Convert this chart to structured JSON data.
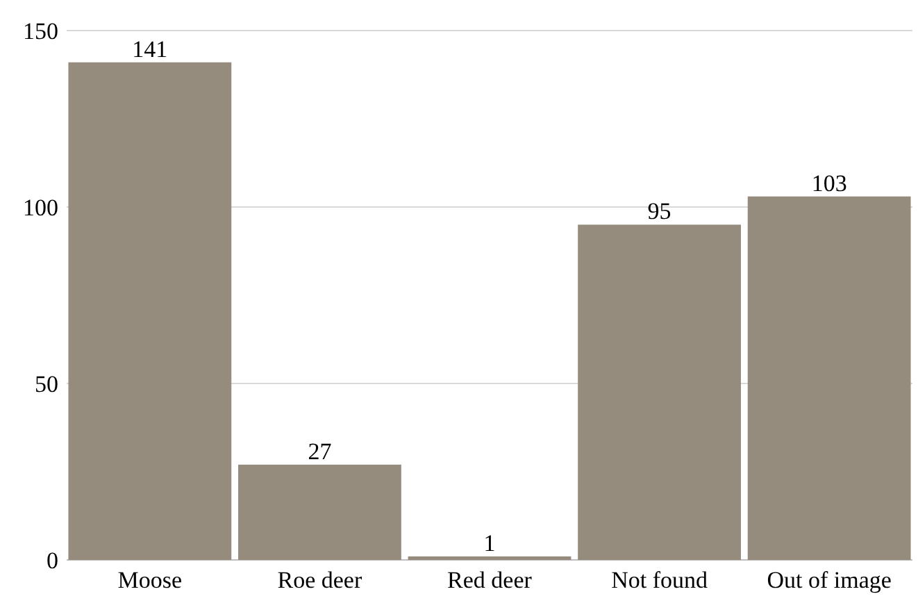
{
  "chart_data": {
    "type": "bar",
    "categories": [
      "Moose",
      "Roe deer",
      "Red deer",
      "Not found",
      "Out of image"
    ],
    "values": [
      141,
      27,
      1,
      95,
      103
    ],
    "color": "#968c7e",
    "ylim": [
      0,
      150
    ],
    "yticks": [
      0,
      50,
      100,
      150
    ],
    "grid": "y",
    "data_labels": true
  }
}
